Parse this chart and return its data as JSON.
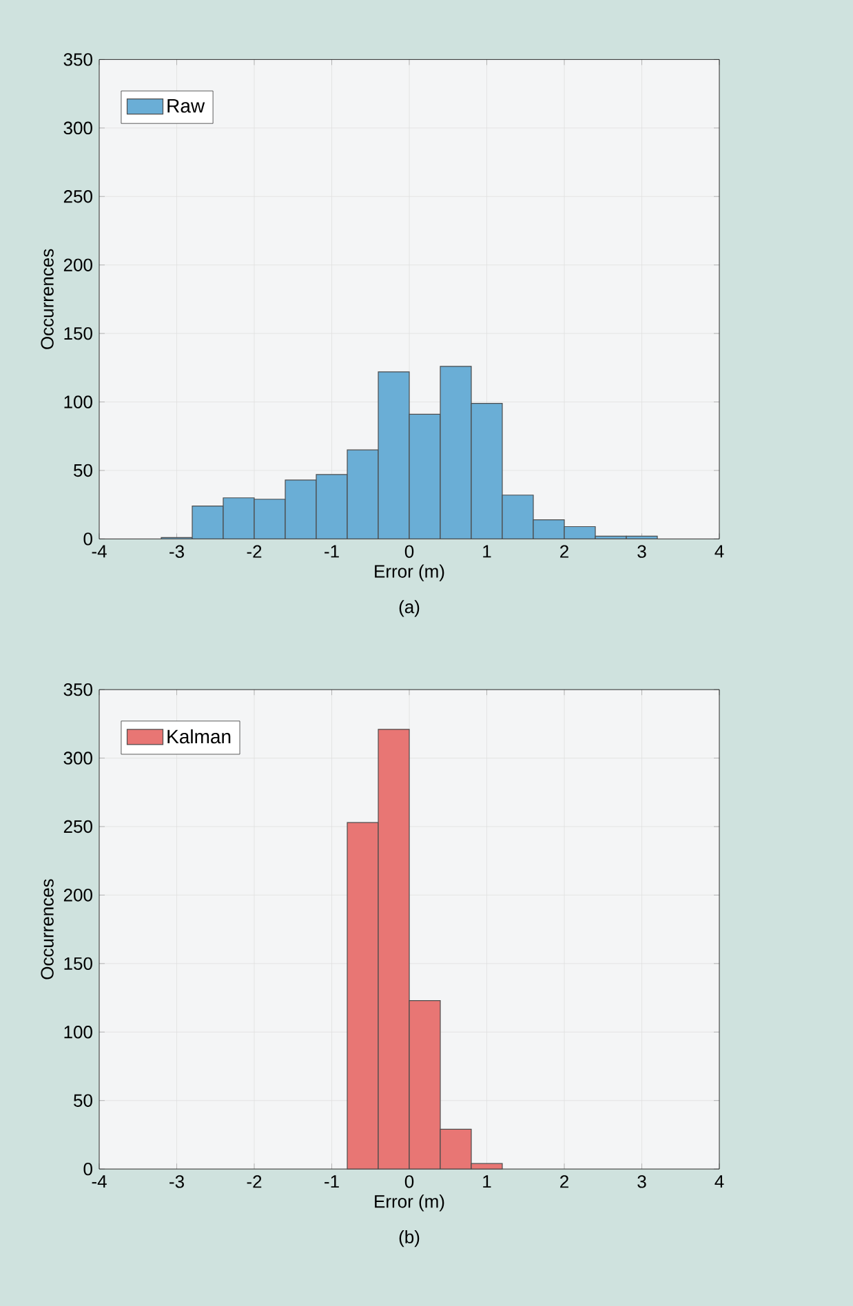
{
  "chart_data": [
    {
      "type": "histogram",
      "xlabel": "Error (m)",
      "ylabel": "Occurrences",
      "annotations": [
        "(a)"
      ],
      "bins": [
        -3.2,
        -2.8,
        -2.4,
        -2.0,
        -1.6,
        -1.2,
        -0.8,
        -0.4,
        0,
        0.4,
        0.8,
        1.2,
        1.6,
        2.0,
        2.4,
        2.8,
        3.2
      ],
      "series": [
        {
          "name": "Raw",
          "color": "#6aaed6",
          "values": [
            1,
            24,
            30,
            29,
            43,
            47,
            65,
            122,
            91,
            126,
            99,
            32,
            14,
            9,
            2,
            2
          ]
        }
      ],
      "xlim": [
        -4,
        4
      ],
      "ylim": [
        0,
        350
      ],
      "xticks": [
        -4,
        -3,
        -2,
        -1,
        0,
        1,
        2,
        3,
        4
      ],
      "yticks": [
        0,
        50,
        100,
        150,
        200,
        250,
        300,
        350
      ],
      "grid": true,
      "legend": "top left"
    },
    {
      "type": "histogram",
      "xlabel": "Error (m)",
      "ylabel": "Occurrences",
      "annotations": [
        "(b)"
      ],
      "bins": [
        -0.8,
        -0.4,
        0,
        0.4,
        0.8,
        1.2
      ],
      "series": [
        {
          "name": "Kalman",
          "color": "#e87674",
          "values": [
            253,
            321,
            123,
            29,
            4
          ]
        }
      ],
      "xlim": [
        -4,
        4
      ],
      "ylim": [
        0,
        350
      ],
      "xticks": [
        -4,
        -3,
        -2,
        -1,
        0,
        1,
        2,
        3,
        4
      ],
      "yticks": [
        0,
        50,
        100,
        150,
        200,
        250,
        300,
        350
      ],
      "grid": true,
      "legend": "top left"
    }
  ]
}
